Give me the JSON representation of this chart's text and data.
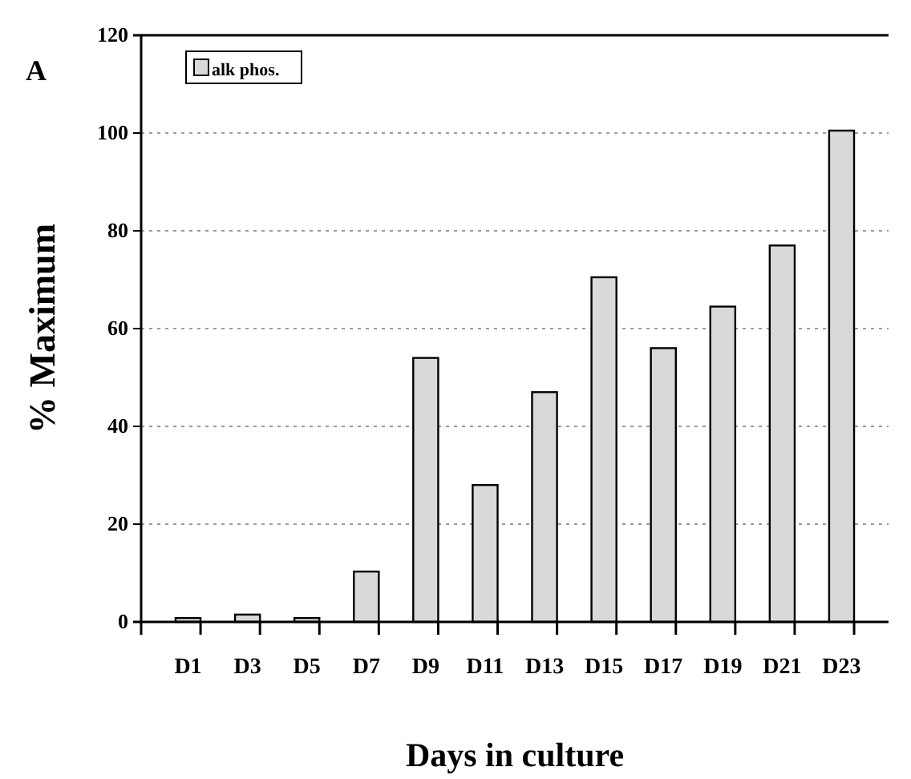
{
  "chart_data": {
    "type": "bar",
    "xlabel": "Days in culture",
    "ylabel": "% Maximum",
    "annotations": [
      "A"
    ],
    "categories": [
      "D1",
      "D3",
      "D5",
      "D7",
      "D9",
      "D11",
      "D13",
      "D15",
      "D17",
      "D19",
      "D21",
      "D23"
    ],
    "series": [
      {
        "name": "alk phos.",
        "color": "#d9d9d9",
        "values": [
          0.8,
          1.5,
          0.8,
          10.3,
          54,
          28,
          47,
          70.5,
          56,
          64.5,
          77,
          100.5
        ]
      }
    ],
    "ylim": [
      0,
      120
    ],
    "yticks": [
      0,
      20,
      40,
      60,
      80,
      100,
      120
    ],
    "grid": "y",
    "legend": "top left"
  }
}
